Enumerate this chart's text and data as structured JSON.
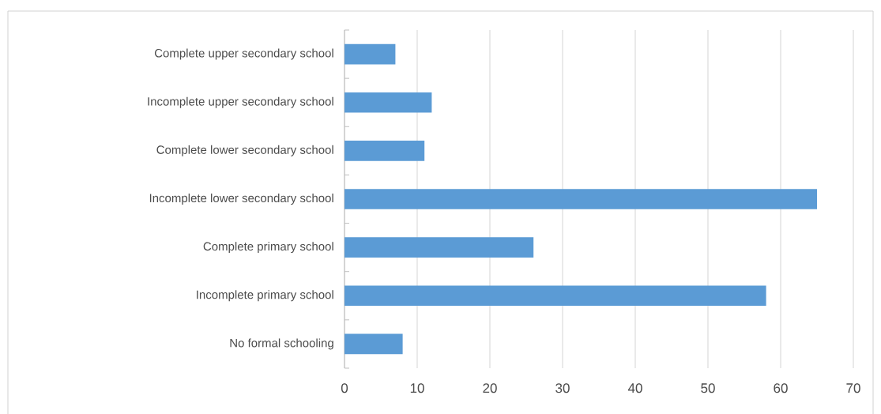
{
  "chart_data": {
    "type": "bar",
    "orientation": "horizontal",
    "categories": [
      "Complete upper secondary school",
      "Incomplete upper secondary school",
      "Complete lower secondary school",
      "Incomplete lower secondary school",
      "Complete primary school",
      "Incomplete primary school",
      "No formal schooling"
    ],
    "values": [
      7,
      12,
      11,
      65,
      26,
      58,
      8
    ],
    "color": "#5b9bd5",
    "xlim": [
      0,
      70
    ],
    "xticks": [
      0,
      10,
      20,
      30,
      40,
      50,
      60,
      70
    ],
    "grid": "x"
  }
}
